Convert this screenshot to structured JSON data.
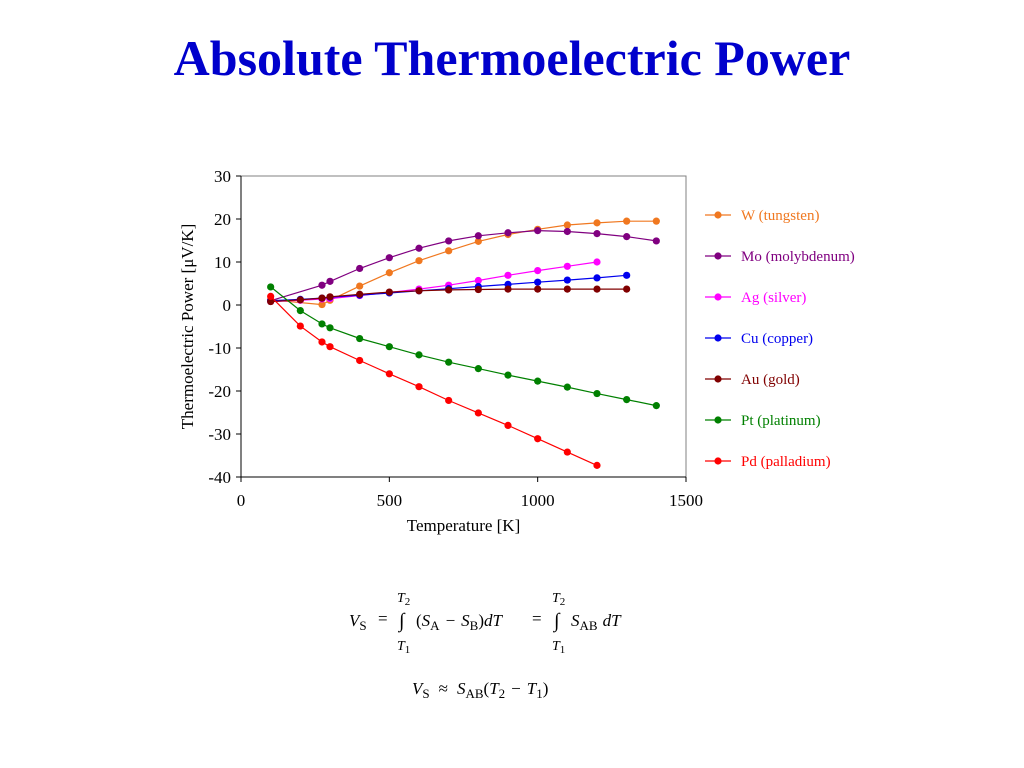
{
  "slide": {
    "title": "Absolute Thermoelectric Power",
    "title_color": "#0000cc"
  },
  "chart_data": {
    "type": "line",
    "xlabel": "Temperature [K]",
    "ylabel": "Thermoelectric Power [μV/K]",
    "xlim": [
      0,
      1500
    ],
    "ylim": [
      -40,
      30
    ],
    "xticks": [
      0,
      500,
      1000,
      1500
    ],
    "yticks": [
      30,
      20,
      10,
      0,
      -10,
      -20,
      -30,
      -40
    ],
    "grid": false,
    "legend_position": "right",
    "series": [
      {
        "name": "W (tungsten)",
        "color": "#f07820",
        "x": [
          100,
          273,
          300,
          400,
          500,
          600,
          700,
          800,
          900,
          1000,
          1100,
          1200,
          1300,
          1400
        ],
        "y": [
          1.2,
          0.1,
          1.1,
          4.4,
          7.5,
          10.3,
          12.6,
          14.8,
          16.4,
          17.6,
          18.6,
          19.1,
          19.5,
          19.5
        ]
      },
      {
        "name": "Mo (molybdenum)",
        "color": "#800080",
        "x": [
          100,
          273,
          300,
          400,
          500,
          600,
          700,
          800,
          900,
          1000,
          1100,
          1200,
          1300,
          1400
        ],
        "y": [
          1.0,
          4.6,
          5.5,
          8.5,
          11.0,
          13.2,
          14.9,
          16.1,
          16.8,
          17.3,
          17.1,
          16.6,
          15.9,
          14.9
        ]
      },
      {
        "name": "Ag (silver)",
        "color": "#ff00ff",
        "x": [
          100,
          200,
          273,
          300,
          400,
          500,
          600,
          700,
          800,
          900,
          1000,
          1100,
          1200
        ],
        "y": [
          0.8,
          1.1,
          1.4,
          1.5,
          2.2,
          2.9,
          3.7,
          4.6,
          5.7,
          6.9,
          8.0,
          9.0,
          10.0
        ]
      },
      {
        "name": "Cu (copper)",
        "color": "#0000ee",
        "x": [
          100,
          200,
          273,
          300,
          400,
          500,
          600,
          700,
          800,
          900,
          1000,
          1100,
          1200,
          1300
        ],
        "y": [
          1.0,
          1.3,
          1.6,
          1.8,
          2.3,
          2.8,
          3.3,
          3.8,
          4.3,
          4.8,
          5.3,
          5.8,
          6.3,
          6.9
        ]
      },
      {
        "name": "Au (gold)",
        "color": "#800000",
        "x": [
          100,
          200,
          273,
          300,
          400,
          500,
          600,
          700,
          800,
          900,
          1000,
          1100,
          1200,
          1300
        ],
        "y": [
          0.8,
          1.2,
          1.6,
          1.9,
          2.5,
          3.0,
          3.3,
          3.5,
          3.6,
          3.7,
          3.7,
          3.7,
          3.7,
          3.7
        ]
      },
      {
        "name": "Pt (platinum)",
        "color": "#008000",
        "x": [
          100,
          200,
          273,
          300,
          400,
          500,
          600,
          700,
          800,
          900,
          1000,
          1100,
          1200,
          1300,
          1400
        ],
        "y": [
          4.2,
          -1.3,
          -4.4,
          -5.3,
          -7.8,
          -9.7,
          -11.6,
          -13.3,
          -14.8,
          -16.3,
          -17.7,
          -19.1,
          -20.6,
          -22.0,
          -23.4
        ]
      },
      {
        "name": "Pd (palladium)",
        "color": "#ff0000",
        "x": [
          100,
          200,
          273,
          300,
          400,
          500,
          600,
          700,
          800,
          900,
          1000,
          1100,
          1200
        ],
        "y": [
          2.0,
          -4.9,
          -8.6,
          -9.7,
          -12.9,
          -16.0,
          -19.0,
          -22.2,
          -25.1,
          -28.0,
          -31.1,
          -34.2,
          -37.3
        ]
      }
    ]
  },
  "equations": {
    "v_s": "V",
    "sub_s": "S",
    "eq": "=",
    "approx": "≈",
    "integral": "∫",
    "T": "T",
    "sub_1": "1",
    "sub_2": "2",
    "lparen": "(",
    "rparen": ")",
    "S": "S",
    "sub_A": "A",
    "sub_B": "B",
    "sub_AB": "AB",
    "minus": "−",
    "dT_d": "d",
    "dT_T": "T"
  }
}
